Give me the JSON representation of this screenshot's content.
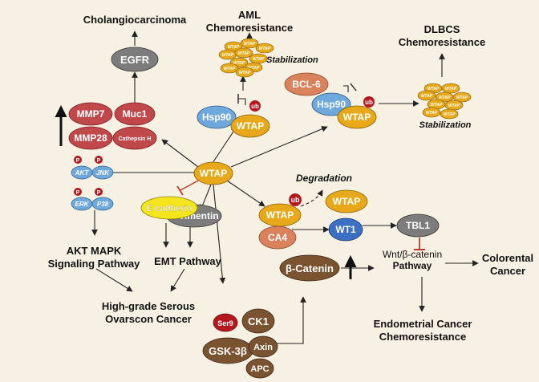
{
  "colors": {
    "background": "#f7f1e3",
    "wtap_gold": "#e7a91a",
    "hsp90_blue": "#6fa8dc",
    "mmp_red": "#c0474a",
    "egfr_gray": "#7c7c7c",
    "ecadherin_yellow": "#f4e51c",
    "beta_catenin_brown": "#7a5330",
    "wt1_blue": "#3b6fc2",
    "ca4_salmon": "#d9825c",
    "ub_red": "#b5171f",
    "inhibit_red": "#c0392b"
  },
  "outcomes": {
    "cholangiocarcinoma": "Cholangiocarcinoma",
    "aml_line1": "AML",
    "aml_line2": "Chemoresistance",
    "dlbcs_line1": "DLBCS",
    "dlbcs_line2": "Chemoresistance",
    "akt_mapk_line1": "AKT MAPK",
    "akt_mapk_line2": "Signaling Pathway",
    "emt": "EMT Pathway",
    "ovarian_line1": "High-grade Serous",
    "ovarian_line2": "Ovarscon Cancer",
    "colorectal_line1": "Colorental",
    "colorectal_line2": "Cancer",
    "endometrial_line1": "Endometrial Cancer",
    "endometrial_line2": "Chemoresistance",
    "wnt_line1": "Wnt/β-catenin",
    "wnt_line2": "Pathway"
  },
  "nodes": {
    "egfr": "EGFR",
    "mmp7": "MMP7",
    "muc1": "Muc1",
    "mmp28": "MMP28",
    "cathepsin": "Cathepsin H",
    "akt": "AKT",
    "jnk": "JNK",
    "erk": "ERK",
    "p38": "P38",
    "phospho": "P",
    "wtap_center": "WTAP",
    "hsp90": "Hsp90",
    "wtap": "WTAP",
    "ub": "ub",
    "bcl6": "BCL-6",
    "ecadherin": "E-cadherin",
    "vimentin": "vimentin",
    "ca4": "CA4",
    "wt1": "WT1",
    "tbl1": "TBL1",
    "beta_catenin": "β-Catenin",
    "ser9": "Ser9",
    "ck1": "CK1",
    "gsk3b": "GSK-3β",
    "axin": "Axin",
    "apc": "APC",
    "wtap_small": "WTAP"
  },
  "annotations": {
    "stabilization": "Stabilization",
    "degradation": "Degradation"
  }
}
